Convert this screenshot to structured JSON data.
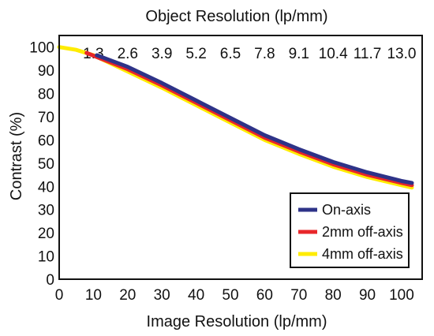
{
  "chart_data": {
    "type": "line",
    "title": "",
    "top_axis_title": "Object Resolution (lp/mm)",
    "xlabel": "Image Resolution (lp/mm)",
    "ylabel": "Contrast (%)",
    "xlim": [
      0,
      106
    ],
    "ylim": [
      0,
      105
    ],
    "x_ticks": [
      0,
      10,
      20,
      30,
      40,
      50,
      60,
      70,
      80,
      90,
      100
    ],
    "y_ticks": [
      0,
      10,
      20,
      30,
      40,
      50,
      60,
      70,
      80,
      90,
      100
    ],
    "top_ticks": [
      "1.3",
      "2.6",
      "3.9",
      "5.2",
      "6.5",
      "7.8",
      "9.1",
      "10.4",
      "11.7",
      "13.0"
    ],
    "grid": false,
    "legend_position": "bottom-right",
    "series": [
      {
        "name": "On-axis",
        "color": "#2e3388",
        "x": [
          11,
          20,
          30,
          40,
          50,
          60,
          70,
          80,
          90,
          100,
          103
        ],
        "y": [
          96.5,
          91.5,
          84.5,
          77,
          69.5,
          62,
          56,
          50.5,
          46,
          42.3,
          41.5
        ]
      },
      {
        "name": "2mm off-axis",
        "color": "#e8262a",
        "x": [
          8,
          10,
          20,
          30,
          40,
          50,
          60,
          70,
          80,
          90,
          100,
          103
        ],
        "y": [
          97.5,
          96.3,
          90.5,
          83.5,
          76,
          68.5,
          61,
          55,
          49.5,
          45,
          41.5,
          40.5
        ]
      },
      {
        "name": "4mm off-axis",
        "color": "#ffec00",
        "x": [
          0,
          5,
          10,
          20,
          30,
          40,
          50,
          60,
          70,
          80,
          90,
          100,
          103
        ],
        "y": [
          100,
          98.8,
          96.5,
          89.5,
          82.5,
          75,
          67.5,
          60,
          54,
          48.5,
          44,
          40.5,
          39.5
        ]
      }
    ]
  }
}
